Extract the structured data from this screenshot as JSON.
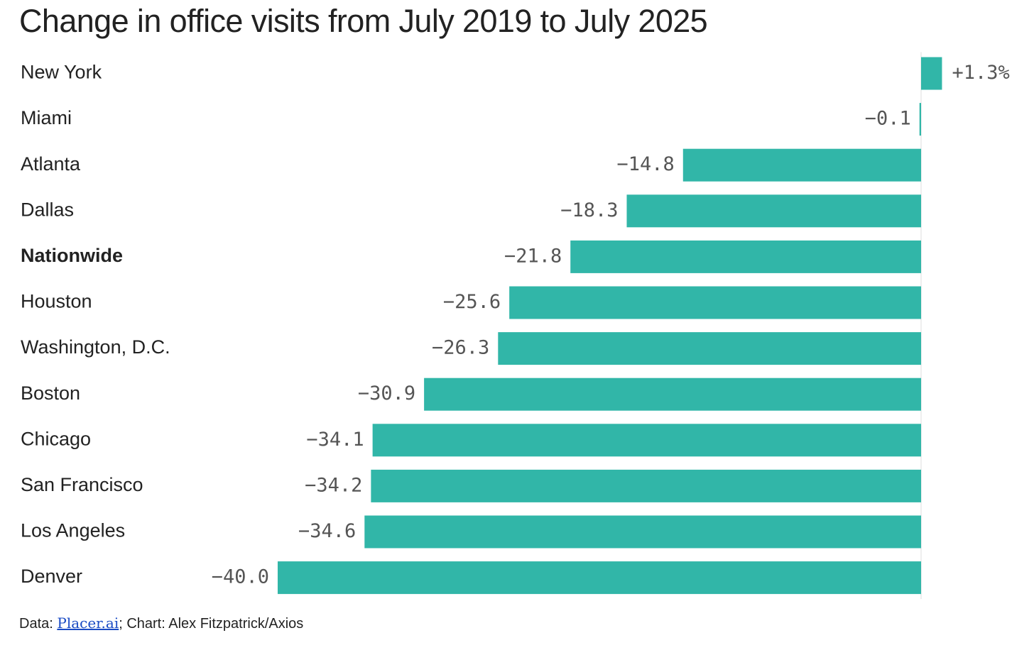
{
  "chart_data": {
    "type": "bar",
    "orientation": "horizontal",
    "title": "Change in office visits from July 2019 to July 2025",
    "categories": [
      "New York",
      "Miami",
      "Atlanta",
      "Dallas",
      "Nationwide",
      "Houston",
      "Washington, D.C.",
      "Boston",
      "Chicago",
      "San Francisco",
      "Los Angeles",
      "Denver"
    ],
    "values": [
      1.3,
      -0.1,
      -14.8,
      -18.3,
      -21.8,
      -25.6,
      -26.3,
      -30.9,
      -34.1,
      -34.2,
      -34.6,
      -40.0
    ],
    "value_labels": [
      "+1.3%",
      "−0.1",
      "−14.8",
      "−18.3",
      "−21.8",
      "−25.6",
      "−26.3",
      "−30.9",
      "−34.1",
      "−34.2",
      "−34.6",
      "−40.0"
    ],
    "highlight_category": "Nationwide",
    "bar_color": "#31b6a8",
    "xlabel": "",
    "ylabel": "",
    "xlim": [
      -40,
      1.3
    ],
    "grid": false
  },
  "footer": {
    "data_prefix": "Data: ",
    "source_link": "Placer.ai",
    "credit": "; Chart: Alex Fitzpatrick/Axios"
  }
}
